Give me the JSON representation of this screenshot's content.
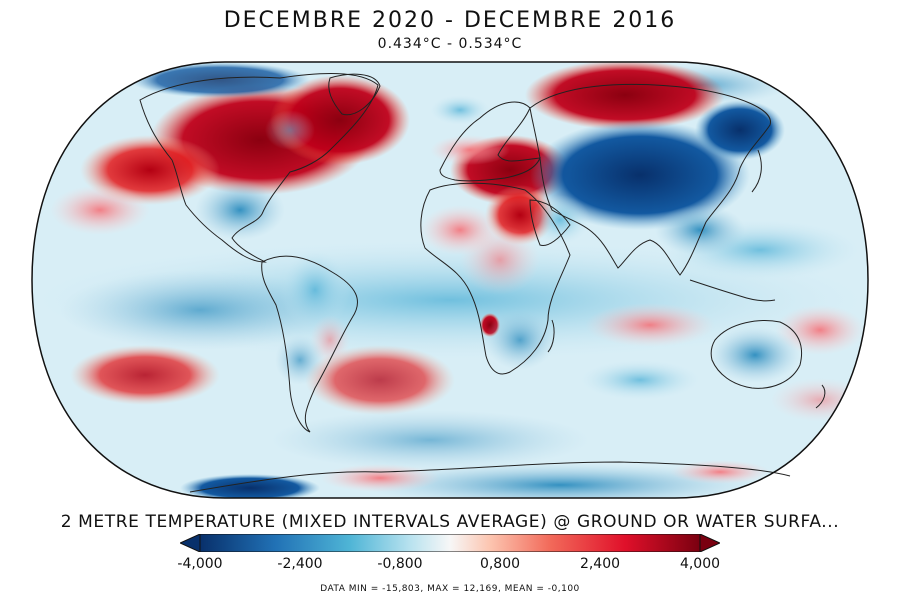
{
  "header": {
    "title": "DECEMBRE 2020 - DECEMBRE 2016",
    "subtitle": "0.434°C - 0.534°C"
  },
  "legend": {
    "variable": "2 METRE TEMPERATURE (MIXED INTERVALS AVERAGE) @ GROUND OR WATER SURFA...",
    "ticks": [
      "-4,000",
      "-2,400",
      "-0,800",
      "0,800",
      "2,400",
      "4,000"
    ],
    "range": [
      -4,
      4
    ],
    "colors": {
      "deep_blue": "#08306b",
      "blue": "#2171b5",
      "light_blue": "#9ecae1",
      "white": "#f7f7f7",
      "light_red": "#fcae91",
      "red": "#e31a1c",
      "deep_red": "#99000d"
    },
    "stats": "DATA MIN = -15,803, MAX = 12,169, MEAN = -0,100"
  },
  "map": {
    "projection": "Eckert IV (elliptical world)",
    "background_color": "#ddf0f8"
  }
}
